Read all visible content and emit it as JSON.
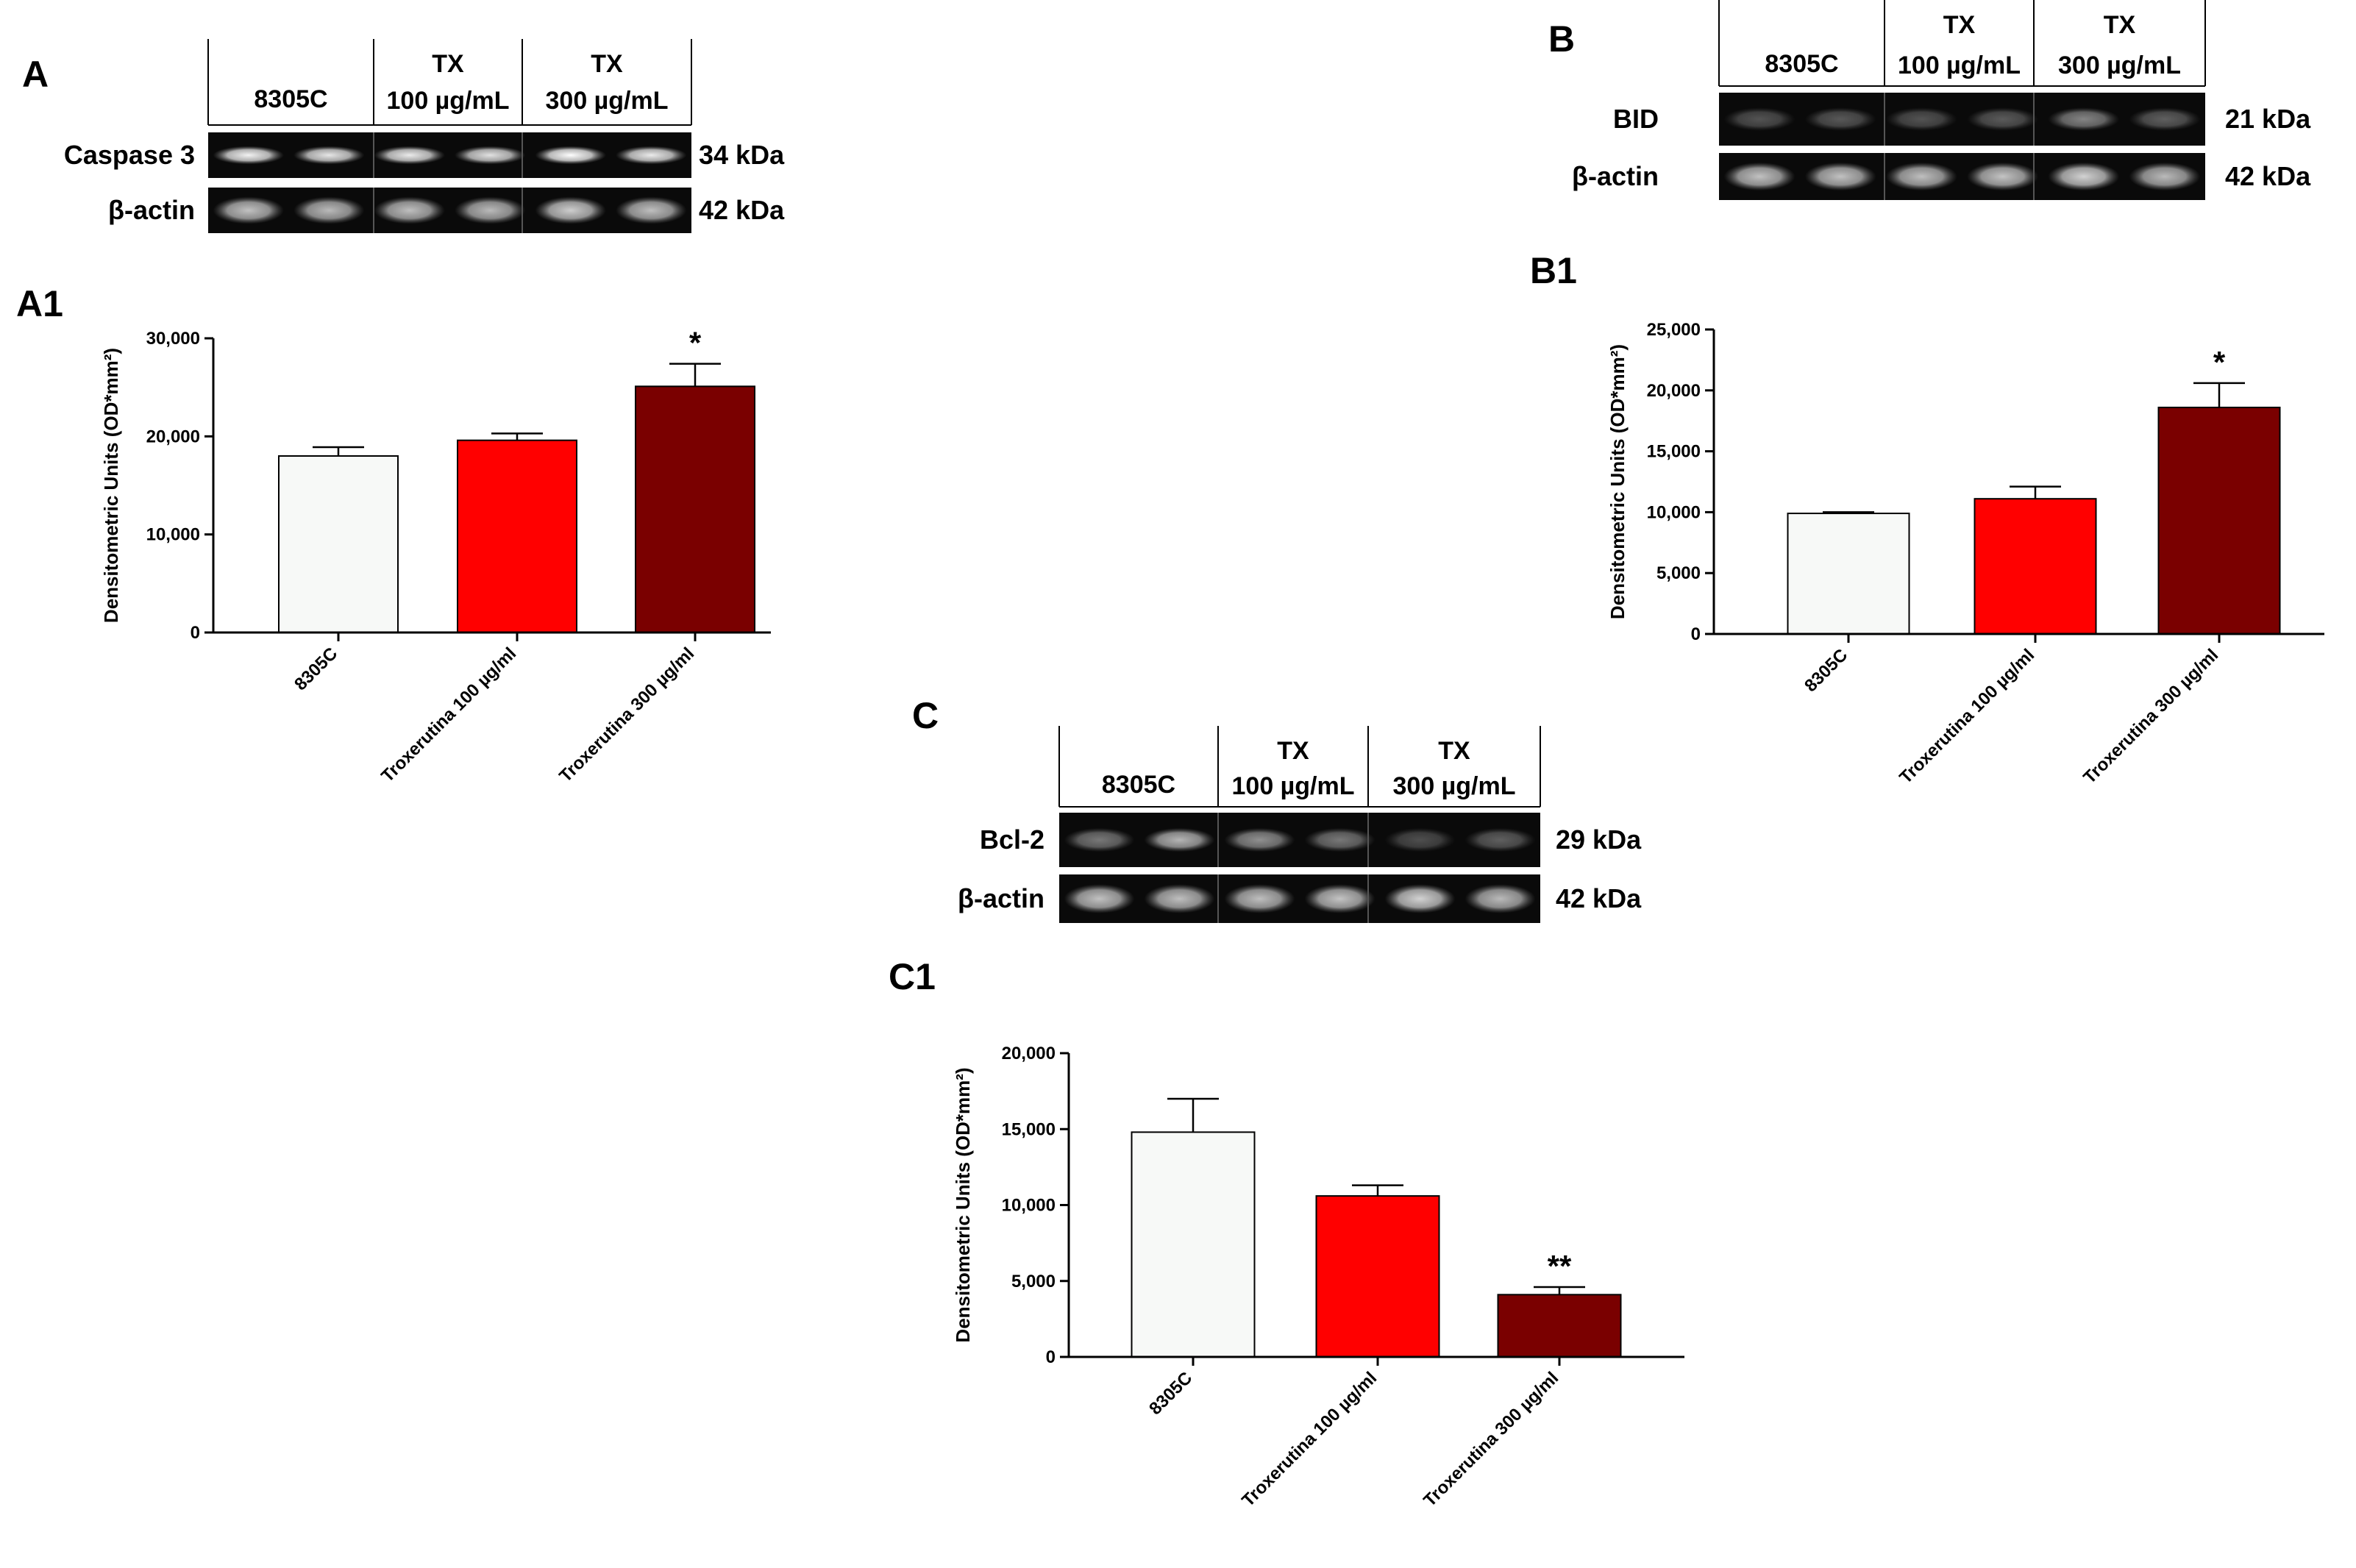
{
  "panels": {
    "A": {
      "letter": "A",
      "lane_groups": [
        {
          "top": "",
          "bottom": "8305C"
        },
        {
          "top": "TX",
          "bottom": "100 µg/mL"
        },
        {
          "top": "TX",
          "bottom": "300 µg/mL"
        }
      ],
      "rows": [
        {
          "protein": "Caspase 3",
          "mw": "34 kDa",
          "intensity": [
            0.95,
            0.9,
            0.92,
            0.88,
            1.0,
            0.92
          ],
          "style": "sharp"
        },
        {
          "protein": "β-actin",
          "mw": "42 kDa",
          "intensity": [
            0.75,
            0.72,
            0.74,
            0.72,
            0.8,
            0.74
          ],
          "style": "broad"
        }
      ]
    },
    "B": {
      "letter": "B",
      "lane_groups": [
        {
          "top": "",
          "bottom": "8305C"
        },
        {
          "top": "TX",
          "bottom": "100 µg/mL"
        },
        {
          "top": "TX",
          "bottom": "300 µg/mL"
        }
      ],
      "rows": [
        {
          "protein": "BID",
          "mw": "21 kDa",
          "intensity": [
            0.3,
            0.32,
            0.3,
            0.33,
            0.5,
            0.35
          ],
          "style": "faint"
        },
        {
          "protein": "β-actin",
          "mw": "42 kDa",
          "intensity": [
            0.75,
            0.75,
            0.74,
            0.76,
            0.82,
            0.72
          ],
          "style": "broad"
        }
      ]
    },
    "C": {
      "letter": "C",
      "lane_groups": [
        {
          "top": "",
          "bottom": "8305C"
        },
        {
          "top": "TX",
          "bottom": "100 µg/mL"
        },
        {
          "top": "TX",
          "bottom": "300 µg/mL"
        }
      ],
      "rows": [
        {
          "protein": "Bcl-2",
          "mw": "29 kDa",
          "intensity": [
            0.45,
            0.7,
            0.55,
            0.45,
            0.28,
            0.35
          ],
          "style": "faint"
        },
        {
          "protein": "β-actin",
          "mw": "42 kDa",
          "intensity": [
            0.75,
            0.74,
            0.74,
            0.76,
            0.82,
            0.72
          ],
          "style": "broad"
        }
      ]
    }
  },
  "chart_data": [
    {
      "id": "A1",
      "panel_label": "A1",
      "type": "bar",
      "title": "",
      "xlabel": "",
      "ylabel": "Densitometric Units (OD*mm²)",
      "ylim": [
        0,
        30000
      ],
      "yticks": [
        0,
        10000,
        20000,
        30000
      ],
      "ytick_labels": [
        "0",
        "10,000",
        "20,000",
        "30,000"
      ],
      "categories": [
        "8305C",
        "Troxerutina 100 µg/ml",
        "Troxerutina 300 µg/ml"
      ],
      "values": [
        18000,
        19600,
        25100
      ],
      "errors": [
        900,
        700,
        2300
      ],
      "colors": [
        "#f7f9f7",
        "#ff0000",
        "#7a0000"
      ],
      "significance": [
        "",
        "",
        "*"
      ]
    },
    {
      "id": "B1",
      "panel_label": "B1",
      "type": "bar",
      "title": "",
      "xlabel": "",
      "ylabel": "Densitometric Units (OD*mm²)",
      "ylim": [
        0,
        25000
      ],
      "yticks": [
        0,
        5000,
        10000,
        15000,
        20000,
        25000
      ],
      "ytick_labels": [
        "0",
        "5,000",
        "10,000",
        "15,000",
        "20,000",
        "25,000"
      ],
      "categories": [
        "8305C",
        "Troxerutina 100 µg/ml",
        "Troxerutina 300 µg/ml"
      ],
      "values": [
        9900,
        11100,
        18600
      ],
      "errors": [
        100,
        1000,
        2000
      ],
      "colors": [
        "#f7f9f7",
        "#ff0000",
        "#7a0000"
      ],
      "significance": [
        "",
        "",
        "*"
      ]
    },
    {
      "id": "C1",
      "panel_label": "C1",
      "type": "bar",
      "title": "",
      "xlabel": "",
      "ylabel": "Densitometric Units (OD*mm²)",
      "ylim": [
        0,
        20000
      ],
      "yticks": [
        0,
        5000,
        10000,
        15000,
        20000
      ],
      "ytick_labels": [
        "0",
        "5,000",
        "10,000",
        "15,000",
        "20,000"
      ],
      "categories": [
        "8305C",
        "Troxerutina 100 µg/ml",
        "Troxerutina 300 µg/ml"
      ],
      "values": [
        14800,
        10600,
        4100
      ],
      "errors": [
        2200,
        700,
        500
      ],
      "colors": [
        "#f7f9f7",
        "#ff0000",
        "#7a0000"
      ],
      "significance": [
        "",
        "",
        "**"
      ]
    }
  ]
}
